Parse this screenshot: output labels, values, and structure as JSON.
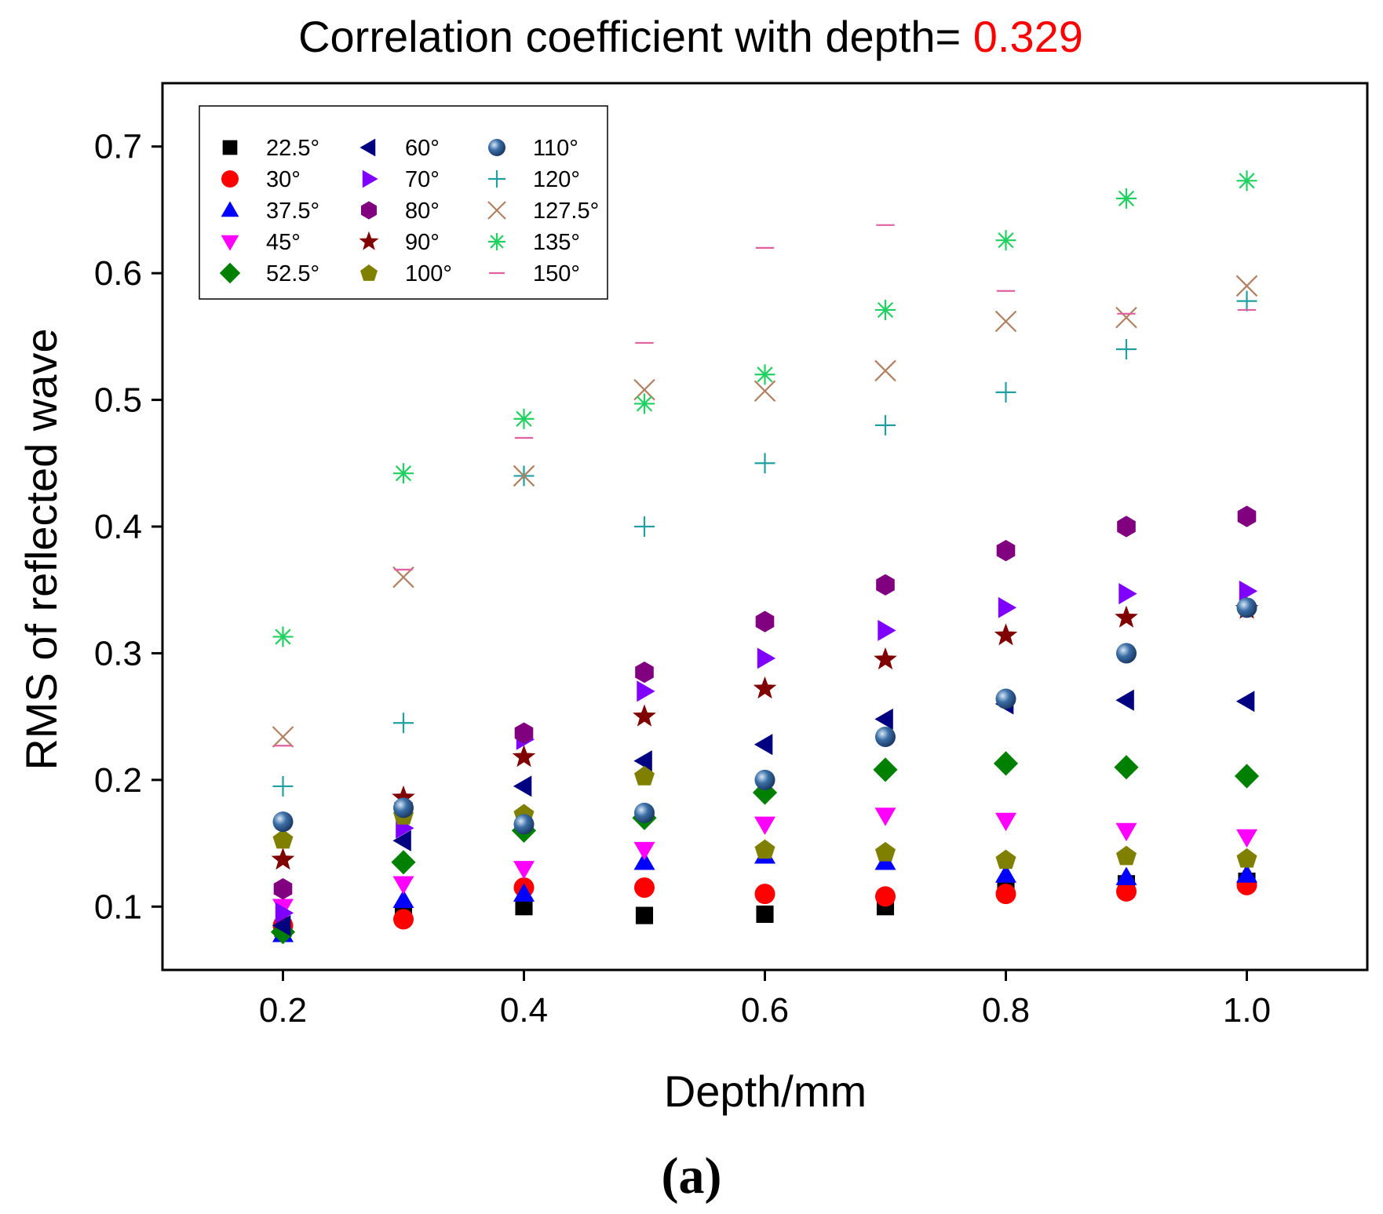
{
  "chart_data": {
    "type": "scatter",
    "title": "Correlation coefficient with depth= ",
    "title_value": "0.329",
    "title_value_color": "#ff0000",
    "panel_label": "(a)",
    "xlabel": "Depth/mm",
    "ylabel": "RMS of reflected wave",
    "xlim": [
      0.1,
      1.1
    ],
    "ylim": [
      0.05,
      0.75
    ],
    "xticks": [
      0.2,
      0.4,
      0.6,
      0.8,
      1.0
    ],
    "xtick_labels": [
      "0.2",
      "0.4",
      "0.6",
      "0.8",
      "1.0"
    ],
    "yticks": [
      0.1,
      0.2,
      0.3,
      0.4,
      0.5,
      0.6,
      0.7
    ],
    "ytick_labels": [
      "0.1",
      "0.2",
      "0.3",
      "0.4",
      "0.5",
      "0.6",
      "0.7"
    ],
    "grid": false,
    "legend_position": "top-left",
    "x": [
      0.2,
      0.3,
      0.4,
      0.5,
      0.6,
      0.7,
      0.8,
      0.9,
      1.0
    ],
    "series": [
      {
        "name": "22.5°",
        "marker": "square",
        "color": "#000000",
        "values": [
          0.083,
          0.095,
          0.1,
          0.093,
          0.094,
          0.1,
          0.115,
          0.118,
          0.12
        ]
      },
      {
        "name": "30°",
        "marker": "circle",
        "color": "#ff0000",
        "values": [
          0.085,
          0.09,
          0.115,
          0.115,
          0.11,
          0.108,
          0.11,
          0.112,
          0.117
        ]
      },
      {
        "name": "37.5°",
        "marker": "triangle-up",
        "color": "#0000ff",
        "values": [
          0.078,
          0.105,
          0.11,
          0.135,
          0.14,
          0.135,
          0.125,
          0.123,
          0.125
        ]
      },
      {
        "name": "45°",
        "marker": "triangle-down",
        "color": "#ff00ff",
        "values": [
          0.1,
          0.118,
          0.13,
          0.145,
          0.165,
          0.172,
          0.168,
          0.16,
          0.155
        ]
      },
      {
        "name": "52.5°",
        "marker": "diamond",
        "color": "#008000",
        "values": [
          0.08,
          0.135,
          0.16,
          0.17,
          0.19,
          0.208,
          0.213,
          0.21,
          0.203
        ]
      },
      {
        "name": "60°",
        "marker": "triangle-left",
        "color": "#000080",
        "values": [
          0.085,
          0.152,
          0.195,
          0.215,
          0.228,
          0.248,
          0.26,
          0.263,
          0.262
        ]
      },
      {
        "name": "70°",
        "marker": "triangle-right",
        "color": "#8000ff",
        "values": [
          0.095,
          0.162,
          0.232,
          0.27,
          0.296,
          0.318,
          0.336,
          0.347,
          0.349
        ]
      },
      {
        "name": "80°",
        "marker": "hexagon",
        "color": "#800080",
        "values": [
          0.114,
          0.178,
          0.237,
          0.285,
          0.325,
          0.354,
          0.381,
          0.4,
          0.408
        ]
      },
      {
        "name": "90°",
        "marker": "star",
        "color": "#800000",
        "values": [
          0.137,
          0.186,
          0.218,
          0.25,
          0.272,
          0.295,
          0.314,
          0.328,
          0.335
        ]
      },
      {
        "name": "100°",
        "marker": "pentagon",
        "color": "#808000",
        "values": [
          0.153,
          0.172,
          0.173,
          0.203,
          0.145,
          0.143,
          0.137,
          0.14,
          0.138
        ]
      },
      {
        "name": "110°",
        "marker": "sphere",
        "color": "#3a6ea5",
        "values": [
          0.167,
          0.178,
          0.165,
          0.174,
          0.2,
          0.234,
          0.264,
          0.3,
          0.336
        ]
      },
      {
        "name": "120°",
        "marker": "plus",
        "color": "#20a0a0",
        "values": [
          0.195,
          0.245,
          0.44,
          0.4,
          0.45,
          0.48,
          0.506,
          0.54,
          0.578
        ]
      },
      {
        "name": "127.5°",
        "marker": "cross",
        "color": "#b08060",
        "values": [
          0.234,
          0.36,
          0.44,
          0.508,
          0.507,
          0.523,
          0.562,
          0.565,
          0.59
        ]
      },
      {
        "name": "135°",
        "marker": "asterisk",
        "color": "#20d060",
        "values": [
          0.313,
          0.442,
          0.485,
          0.497,
          0.52,
          0.571,
          0.626,
          0.659,
          0.673
        ]
      },
      {
        "name": "150°",
        "marker": "dash",
        "color": "#e060a0",
        "values": [
          0.227,
          0.366,
          0.47,
          0.545,
          0.62,
          0.638,
          0.586,
          0.568,
          0.571
        ]
      }
    ]
  }
}
